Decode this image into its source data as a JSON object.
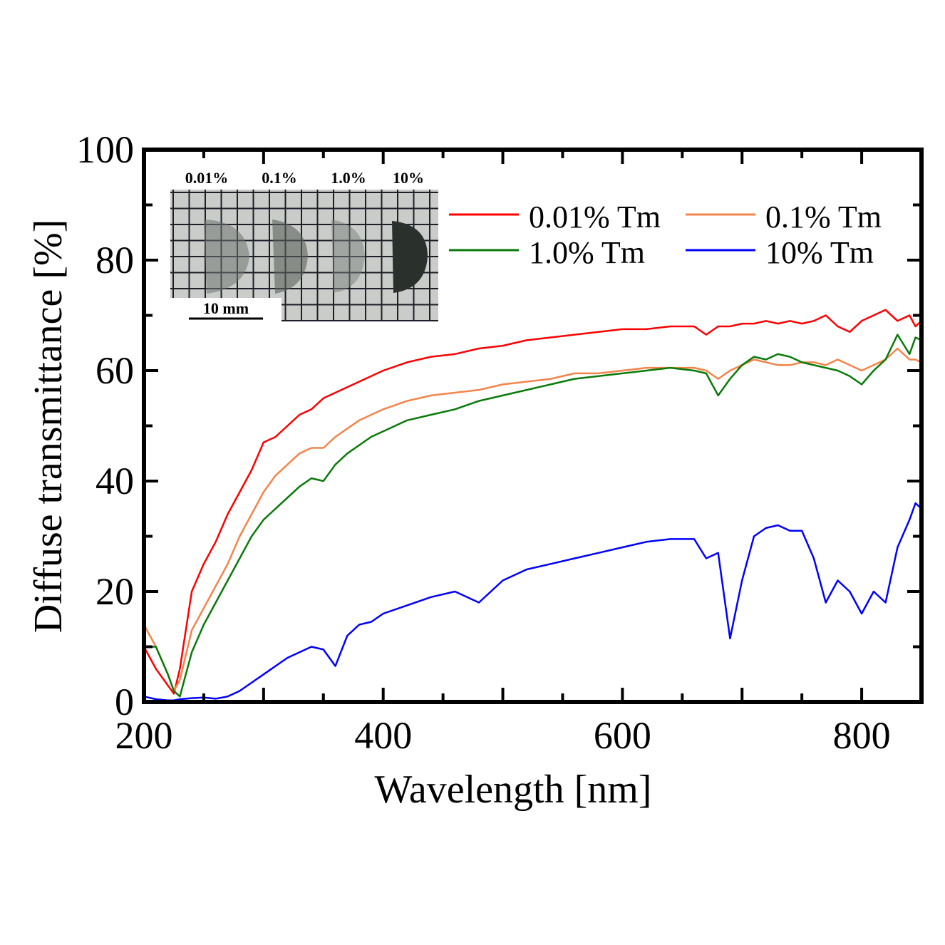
{
  "chart_data": {
    "type": "line",
    "title": "",
    "xlabel": "Wavelength [nm]",
    "ylabel": "Diffuse transmittance [%]",
    "xlim": [
      200,
      850
    ],
    "ylim": [
      0,
      100
    ],
    "xticks": [
      200,
      400,
      600,
      800
    ],
    "yticks": [
      0,
      20,
      40,
      60,
      80,
      100
    ],
    "grid": false,
    "legend_position": "top-right",
    "x": [
      200,
      210,
      220,
      225,
      230,
      240,
      250,
      260,
      270,
      280,
      290,
      300,
      310,
      320,
      330,
      340,
      350,
      360,
      370,
      380,
      390,
      400,
      420,
      440,
      460,
      480,
      500,
      520,
      540,
      560,
      580,
      600,
      620,
      640,
      660,
      670,
      680,
      690,
      700,
      710,
      720,
      730,
      740,
      750,
      760,
      770,
      780,
      790,
      800,
      810,
      820,
      830,
      840,
      845,
      850
    ],
    "series": [
      {
        "name": "0.01% Tm",
        "color": "#ff0000",
        "values": [
          10,
          6,
          3,
          1.5,
          6,
          20,
          25,
          29,
          34,
          38,
          42,
          47,
          48,
          50,
          52,
          53,
          55,
          56,
          57,
          58,
          59,
          60,
          61.5,
          62.5,
          63,
          64,
          64.5,
          65.5,
          66,
          66.5,
          67,
          67.5,
          67.5,
          68,
          68,
          66.5,
          68,
          68,
          68.5,
          68.5,
          69,
          68.5,
          69,
          68.5,
          69,
          70,
          68,
          67,
          69,
          70,
          71,
          69,
          70,
          68,
          69
        ]
      },
      {
        "name": "0.1% Tm",
        "color": "#f4844a",
        "values": [
          14,
          10,
          5,
          2,
          4,
          13,
          17,
          21,
          25,
          30,
          34,
          38,
          41,
          43,
          45,
          46,
          46,
          48,
          49.5,
          51,
          52,
          53,
          54.5,
          55.5,
          56,
          56.5,
          57.5,
          58,
          58.5,
          59.5,
          59.5,
          60,
          60.5,
          60.5,
          60.5,
          60,
          58.5,
          60,
          61,
          62,
          61.5,
          61,
          61,
          61.5,
          61.5,
          61,
          62,
          61,
          60,
          61,
          62,
          64,
          62,
          62,
          61.5
        ]
      },
      {
        "name": "1.0% Tm",
        "color": "#0a7a0a",
        "values": [
          10,
          10,
          5,
          2,
          1,
          9,
          14,
          18,
          22,
          26,
          30,
          33,
          35,
          37,
          39,
          40.5,
          40,
          43,
          45,
          46.5,
          48,
          49,
          51,
          52,
          53,
          54.5,
          55.5,
          56.5,
          57.5,
          58.5,
          59,
          59.5,
          60,
          60.5,
          60,
          59.5,
          55.5,
          58.5,
          61,
          62.5,
          62,
          63,
          62.5,
          61.5,
          61,
          60.5,
          60,
          59,
          57.5,
          60,
          62,
          66.5,
          63,
          66,
          65.5
        ]
      },
      {
        "name": "10% Tm",
        "color": "#0000ff",
        "values": [
          1,
          0.5,
          0.3,
          0.3,
          0.5,
          0.7,
          0.8,
          0.6,
          1,
          2,
          3.5,
          5,
          6.5,
          8,
          9,
          10,
          9.5,
          6.5,
          12,
          14,
          14.5,
          16,
          17.5,
          19,
          20,
          18,
          22,
          24,
          25,
          26,
          27,
          28,
          29,
          29.5,
          29.5,
          26,
          27,
          11.5,
          22,
          30,
          31.5,
          32,
          31,
          31,
          26,
          18,
          22,
          20,
          16,
          20,
          18,
          28,
          33,
          36,
          35
        ]
      }
    ]
  },
  "inset": {
    "sample_labels": [
      "0.01%",
      "0.1%",
      "1.0%",
      "10%"
    ],
    "scale_bar_label": "10 mm"
  }
}
